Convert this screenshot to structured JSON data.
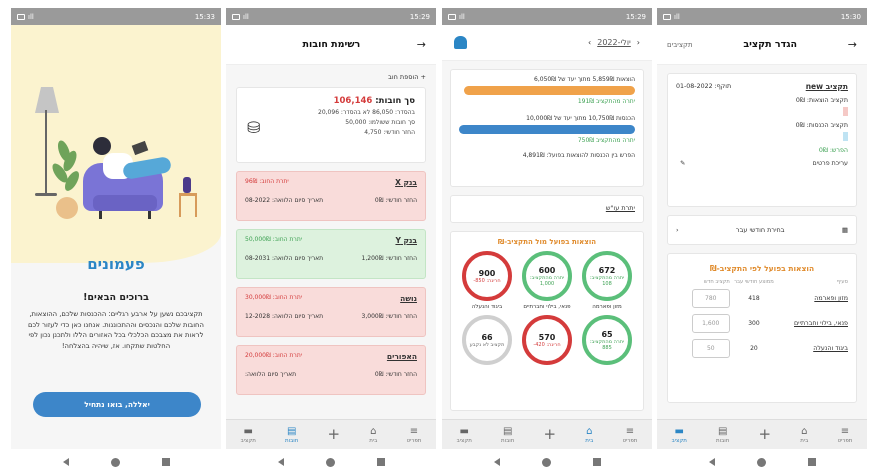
{
  "status": {
    "phone1_time": "15:33",
    "phone2_time": "15:29",
    "phone3_time": "15:29",
    "phone4_time": "15:30"
  },
  "tabs": [
    {
      "label": "תפריט",
      "icon": "menu-icon"
    },
    {
      "label": "בית",
      "icon": "home-icon"
    },
    {
      "label": "",
      "icon": "plus-icon"
    },
    {
      "label": "חובות",
      "icon": "debts-icon"
    },
    {
      "label": "תקציב",
      "icon": "folder-icon"
    }
  ],
  "welcome": {
    "brand": "פעמונים",
    "title": "ברוכים הבאים!",
    "text": "תקציבכם נשען על ארבע רגליים: ההכנסות שלכם, ההוצאות, החובות שלכם והנכסים וההתכוננות. אנחנו כאן כדי לעזור לכם לראות את מצבכם הכלכלי בכל האזורים הללו ולתכנן נכון לפי החלטות שתקחו. אז, שיהיה בהצלחה!",
    "cta": "יאללה, בואו נתחיל"
  },
  "debts": {
    "title": "רשימת חובות",
    "add_label": "+ הוספת חוב",
    "summary": {
      "label": "סך חובות:",
      "total": "106,146",
      "line1": "בהסדר: 86,050   לא בהסדר: 20,096",
      "line2": "סך חובות ששולמו: 50,000",
      "line3": "החזר חודשי: 4,750"
    },
    "items": [
      {
        "name": "בנק X",
        "balance": "יתרת החוב: 96₪",
        "monthly": "החזר חודשי: 0₪",
        "end": "תאריך סיום הלוואה: 08-2022",
        "tone": "pink"
      },
      {
        "name": "בנק Y",
        "balance": "יתרת החוב: 50,000₪",
        "monthly": "החזר חודשי: 1,200₪",
        "end": "תאריך סיום הלוואה: 08-2031",
        "tone": "green"
      },
      {
        "name": "נושה",
        "balance": "יתרת החוב: 30,000₪",
        "monthly": "החזר חודשי: 3,000₪",
        "end": "תאריך סיום הלוואה: 12-2028",
        "tone": "pink"
      },
      {
        "name": "האפורים",
        "balance": "יתרת החוב: 20,000₪",
        "monthly": "החזר חודשי: 0₪",
        "end": "תאריך סיום הלוואה:",
        "tone": "pink"
      }
    ]
  },
  "home": {
    "month": "יולי-2022",
    "expenses_line": "הוצאות 5,859₪ מתוך יעד של 6,050₪",
    "expenses_sub": "יתרה מהתקציב 191₪",
    "expenses_progress": 0.97,
    "income_line": "הכנסות 10,750₪ מתוך יעד של 10,000₪",
    "income_sub": "יתרה מהתקציב 750₪",
    "income_progress": 1.0,
    "diff_line": "הפרש בין הכנסות להוצאות בפועל: 4,891₪",
    "remain_link": "יתרת עו\"ש",
    "gauges_title": "הוצאות בפועל מול התקציב-₪",
    "gauges": [
      {
        "value": "672",
        "sub": "יתרה מהתקציב: 108",
        "label": "מזון ופארמה",
        "tone": "g",
        "level": 0.86
      },
      {
        "value": "600",
        "sub": "יתרה מהתקציב: 1,000",
        "label": "פנאי, בילוי וחברתיים",
        "tone": "g",
        "level": 0.38
      },
      {
        "value": "900",
        "sub": "חריגה: 850-",
        "label": "ביגוד והנעלה",
        "tone": "r",
        "level": 1.0
      },
      {
        "value": "65",
        "sub": "יתרה מהתקציב: 885",
        "label": "",
        "tone": "g",
        "level": 0.07
      },
      {
        "value": "570",
        "sub": "חריגה: 420-",
        "label": "",
        "tone": "r",
        "level": 1.0
      },
      {
        "value": "66",
        "sub": "תקציב לא נקבע",
        "label": "",
        "tone": "n",
        "level": 0
      }
    ]
  },
  "budget": {
    "title": "הגדר תקציב",
    "header_link": "תקציבים",
    "name": "תקציב new",
    "valid": "תוקף: 01-08-2022",
    "expense_budget": "תקציב הוצאות: 0₪",
    "income_budget": "תקציב הכנסות: 0₪",
    "diff": "הפרש: 0₪",
    "edit": "עריכת פרטים",
    "choose_month": "בחירת חודשי עבר",
    "table_title": "הוצאות בפועל לפי התקציב-₪",
    "columns": [
      "סעיף",
      "ממוצע חודשי עבר",
      "תקציב חדש"
    ],
    "rows": [
      {
        "category": "מזון ופארמה",
        "avg": "418",
        "placeholder": "780"
      },
      {
        "category": "פנאי, בילוי וחברתיים",
        "avg": "300",
        "placeholder": "1,600"
      },
      {
        "category": "ביגוד והנעלה",
        "avg": "20",
        "placeholder": "50"
      }
    ]
  }
}
